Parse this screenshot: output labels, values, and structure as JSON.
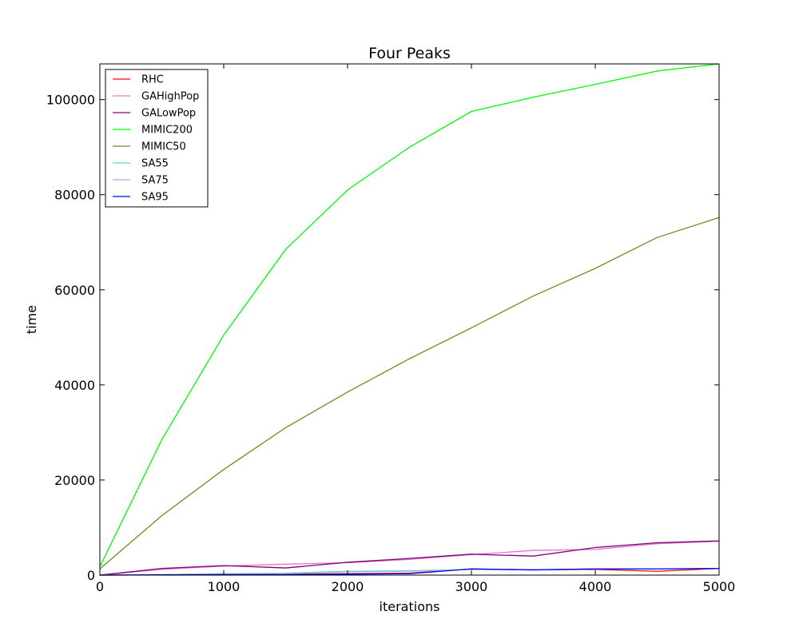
{
  "chart_data": {
    "type": "line",
    "title": "Four Peaks",
    "xlabel": "iterations",
    "ylabel": "time",
    "xlim": [
      0,
      5000
    ],
    "ylim": [
      0,
      107500
    ],
    "grid": false,
    "legend_placement": "top-left",
    "x_ticks": [
      "0",
      "1000",
      "2000",
      "3000",
      "4000",
      "5000"
    ],
    "y_ticks": [
      "0",
      "20000",
      "40000",
      "60000",
      "80000",
      "100000"
    ],
    "x": [
      0,
      500,
      1000,
      1500,
      2000,
      2500,
      3000,
      3500,
      4000,
      4500,
      5000
    ],
    "series": [
      {
        "name": "RHC",
        "color": "#ff0000",
        "values": [
          0,
          50,
          150,
          200,
          300,
          400,
          1300,
          1100,
          1200,
          800,
          1400
        ]
      },
      {
        "name": "GAHighPop",
        "color": "#e377c2",
        "values": [
          0,
          1200,
          1900,
          2300,
          2600,
          3300,
          4300,
          5200,
          5400,
          6600,
          7100
        ]
      },
      {
        "name": "GALowPop",
        "color": "#800080",
        "values": [
          0,
          1400,
          2000,
          1500,
          2700,
          3500,
          4400,
          4000,
          5800,
          6800,
          7200
        ]
      },
      {
        "name": "MIMIC200",
        "color": "#00ff00",
        "values": [
          1800,
          28500,
          50500,
          68500,
          81000,
          90000,
          97500,
          100500,
          103200,
          106000,
          107500
        ]
      },
      {
        "name": "MIMIC50",
        "color": "#6b8e23",
        "values": [
          1300,
          12500,
          22200,
          31000,
          38500,
          45500,
          52000,
          58700,
          64500,
          71000,
          75200
        ]
      },
      {
        "name": "SA55",
        "color": "#40e0d0",
        "values": [
          0,
          100,
          300,
          400,
          800,
          900,
          1200,
          1100,
          1300,
          1300,
          1400
        ]
      },
      {
        "name": "SA75",
        "color": "#9ab3d5",
        "values": [
          0,
          100,
          300,
          300,
          700,
          800,
          1200,
          1100,
          1300,
          1300,
          1400
        ]
      },
      {
        "name": "SA95",
        "color": "#0000ff",
        "values": [
          0,
          50,
          100,
          100,
          200,
          300,
          1300,
          1100,
          1300,
          1300,
          1400
        ]
      }
    ]
  }
}
